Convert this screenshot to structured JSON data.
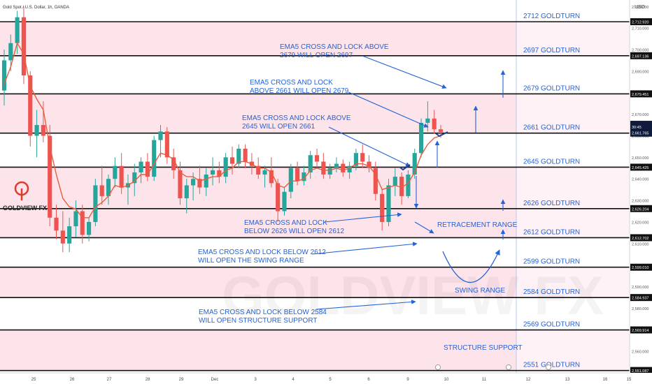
{
  "header": {
    "symbol": "Gold Spot / U.S. Dollar, 1h, OANDA",
    "currency": "USD"
  },
  "brand": {
    "logo_text": "GOLDVIEW FX",
    "watermark": "GOLDVIEW FX",
    "logo_color": "#e03a28"
  },
  "colors": {
    "zone_fill": "#fde3ea",
    "level_line": "#111111",
    "annotation": "#2463d6",
    "up_candle": "#26a69a",
    "down_candle": "#ef5350",
    "ema": "#e85d3a"
  },
  "chart_data": {
    "type": "candlestick",
    "title": "Gold Spot / U.S. Dollar, 1h, OANDA",
    "ylabel": "USD",
    "ylim": [
      2550,
      2723
    ],
    "grid": false,
    "x_ticks": [
      "25",
      "26",
      "27",
      "28",
      "29",
      "Dec",
      "3",
      "4",
      "5",
      "6",
      "9",
      "10",
      "11",
      "12",
      "13",
      "16",
      "15"
    ],
    "y_ticks": [
      2560,
      2570,
      2580,
      2590,
      2600,
      2610,
      2620,
      2630,
      2640,
      2650,
      2660,
      2670,
      2680,
      2690,
      2700,
      2710,
      2720
    ],
    "pink_zones": [
      [
        2697.136,
        2712.92
      ],
      [
        2661.22,
        2679.451
      ],
      [
        2612.702,
        2645.425
      ],
      [
        2584.937,
        2599.01
      ],
      [
        2551.087,
        2569.914
      ]
    ],
    "levels": [
      {
        "value": 2712.92,
        "label": "2712 GOLDTURN",
        "price_tag": "2,712.920"
      },
      {
        "value": 2697.136,
        "label": "2697 GOLDTURN",
        "price_tag": "2,697.136"
      },
      {
        "value": 2679.451,
        "label": "2679 GOLDTURN",
        "price_tag": "2,679.451"
      },
      {
        "value": 2661.22,
        "label": "2661 GOLDTURN",
        "price_tag": "2,661.220"
      },
      {
        "value": 2645.425,
        "label": "2645 GOLDTURN",
        "price_tag": "2,645.425"
      },
      {
        "value": 2626.204,
        "label": "2626 GOLDTURN",
        "price_tag": "2,626.204"
      },
      {
        "value": 2612.702,
        "label": "2612 GOLDTURN",
        "price_tag": "2,612.702"
      },
      {
        "value": 2599.01,
        "label": "2599 GOLDTURN",
        "price_tag": "2,599.010"
      },
      {
        "value": 2584.937,
        "label": "2584 GOLDTURN",
        "price_tag": "2,584.937"
      },
      {
        "value": 2569.914,
        "label": "2569 GOLDTURN",
        "price_tag": "2,569.914"
      },
      {
        "value": 2551.087,
        "label": "2551 GOLDTURN",
        "price_tag": "2,551.087"
      }
    ],
    "current_price": {
      "tag": "2,661.220",
      "countdown": "30:45",
      "close_tag": "2,661.765",
      "value": 2661.765
    },
    "zone_notes": {
      "retracement": "RETRACEMENT RANGE",
      "swing": "SWING RANGE",
      "structure": "STRUCTURE SUPPORT"
    },
    "annotations": [
      {
        "id": "a2679",
        "lines": [
          "EMA5 CROSS AND LOCK ABOVE",
          "2679 WILL OPEN 2697"
        ]
      },
      {
        "id": "a2661",
        "lines": [
          "EMA5 CROSS AND LOCK",
          "ABOVE 2661 WILL OPEN 2679"
        ]
      },
      {
        "id": "a2645",
        "lines": [
          "EMA5 CROSS AND LOCK ABOVE",
          "2645 WILL OPEN 2661"
        ]
      },
      {
        "id": "a2626",
        "lines": [
          "EMA5 CROSS AND LOCK",
          "BELOW 2626 WILL OPEN 2612"
        ]
      },
      {
        "id": "a2612",
        "lines": [
          "EMA5 CROSS AND LOCK BELOW 2612",
          "WILL OPEN THE SWING RANGE"
        ]
      },
      {
        "id": "a2584",
        "lines": [
          "EMA5 CROSS AND LOCK BELOW 2584",
          "WILL OPEN STRUCTURE SUPPORT"
        ]
      }
    ],
    "candles": [
      [
        2681,
        2700,
        2674,
        2695
      ],
      [
        2695,
        2707,
        2690,
        2703
      ],
      [
        2703,
        2718,
        2698,
        2715
      ],
      [
        2715,
        2720,
        2684,
        2688
      ],
      [
        2688,
        2690,
        2655,
        2660
      ],
      [
        2660,
        2672,
        2650,
        2665
      ],
      [
        2665,
        2676,
        2657,
        2660
      ],
      [
        2660,
        2665,
        2618,
        2622
      ],
      [
        2622,
        2628,
        2612,
        2616
      ],
      [
        2616,
        2625,
        2606,
        2610
      ],
      [
        2610,
        2622,
        2606,
        2618
      ],
      [
        2618,
        2630,
        2613,
        2625
      ],
      [
        2625,
        2628,
        2610,
        2614
      ],
      [
        2614,
        2622,
        2611,
        2620
      ],
      [
        2620,
        2640,
        2618,
        2637
      ],
      [
        2637,
        2646,
        2628,
        2632
      ],
      [
        2632,
        2642,
        2628,
        2640
      ],
      [
        2640,
        2650,
        2636,
        2646
      ],
      [
        2646,
        2652,
        2633,
        2636
      ],
      [
        2636,
        2642,
        2628,
        2638
      ],
      [
        2638,
        2647,
        2632,
        2643
      ],
      [
        2643,
        2650,
        2638,
        2648
      ],
      [
        2648,
        2652,
        2639,
        2641
      ],
      [
        2641,
        2660,
        2639,
        2658
      ],
      [
        2658,
        2665,
        2650,
        2662
      ],
      [
        2662,
        2664,
        2647,
        2650
      ],
      [
        2650,
        2654,
        2640,
        2644
      ],
      [
        2644,
        2648,
        2628,
        2631
      ],
      [
        2631,
        2640,
        2624,
        2637
      ],
      [
        2637,
        2643,
        2630,
        2640
      ],
      [
        2640,
        2646,
        2633,
        2636
      ],
      [
        2636,
        2645,
        2632,
        2642
      ],
      [
        2642,
        2650,
        2637,
        2644
      ],
      [
        2644,
        2648,
        2638,
        2641
      ],
      [
        2641,
        2652,
        2638,
        2650
      ],
      [
        2650,
        2655,
        2642,
        2647
      ],
      [
        2647,
        2656,
        2645,
        2654
      ],
      [
        2654,
        2656,
        2645,
        2648
      ],
      [
        2648,
        2652,
        2642,
        2646
      ],
      [
        2646,
        2650,
        2640,
        2642
      ],
      [
        2642,
        2646,
        2636,
        2644
      ],
      [
        2644,
        2650,
        2636,
        2638
      ],
      [
        2638,
        2640,
        2620,
        2625
      ],
      [
        2625,
        2636,
        2623,
        2634
      ],
      [
        2634,
        2647,
        2631,
        2645
      ],
      [
        2645,
        2648,
        2637,
        2639
      ],
      [
        2639,
        2646,
        2637,
        2643
      ],
      [
        2643,
        2653,
        2640,
        2651
      ],
      [
        2651,
        2654,
        2645,
        2648
      ],
      [
        2648,
        2652,
        2640,
        2642
      ],
      [
        2642,
        2647,
        2640,
        2645
      ],
      [
        2645,
        2650,
        2643,
        2647
      ],
      [
        2647,
        2649,
        2641,
        2643
      ],
      [
        2643,
        2648,
        2640,
        2646
      ],
      [
        2646,
        2654,
        2644,
        2652
      ],
      [
        2652,
        2656,
        2645,
        2648
      ],
      [
        2648,
        2651,
        2643,
        2645
      ],
      [
        2645,
        2648,
        2630,
        2633
      ],
      [
        2633,
        2635,
        2616,
        2620
      ],
      [
        2620,
        2640,
        2618,
        2637
      ],
      [
        2637,
        2645,
        2632,
        2641
      ],
      [
        2641,
        2643,
        2628,
        2632
      ],
      [
        2632,
        2644,
        2631,
        2642
      ],
      [
        2642,
        2654,
        2640,
        2652
      ],
      [
        2652,
        2668,
        2650,
        2666
      ],
      [
        2666,
        2676,
        2662,
        2668
      ],
      [
        2668,
        2672,
        2661,
        2663
      ],
      [
        2663,
        2665,
        2659,
        2661.765
      ]
    ],
    "ema5": [
      2684,
      2692,
      2703,
      2698,
      2683,
      2677,
      2672,
      2655,
      2642,
      2631,
      2627,
      2626,
      2622,
      2622,
      2627,
      2629,
      2632,
      2637,
      2636,
      2637,
      2639,
      2642,
      2642,
      2647,
      2652,
      2651,
      2649,
      2643,
      2641,
      2641,
      2639,
      2640,
      2641,
      2641,
      2644,
      2645,
      2648,
      2648,
      2647,
      2645,
      2645,
      2643,
      2637,
      2636,
      2639,
      2639,
      2640,
      2644,
      2645,
      2644,
      2644,
      2645,
      2644,
      2645,
      2647,
      2647,
      2646,
      2642,
      2635,
      2636,
      2637,
      2636,
      2638,
      2643,
      2651,
      2656,
      2659,
      2660
    ]
  }
}
